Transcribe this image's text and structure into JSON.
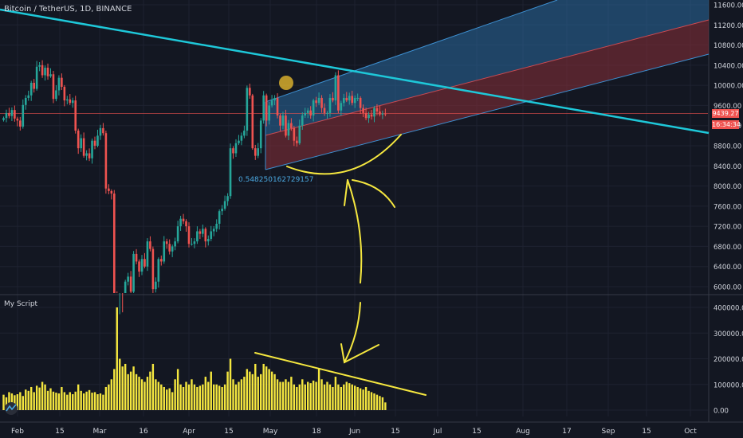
{
  "header": {
    "symbol_label": "Bitcoin / TetherUS, 1D, BINANCE"
  },
  "indicator": {
    "title": "My Script"
  },
  "price_axis": {
    "ticks": [
      "11600.00",
      "11200.00",
      "10800.00",
      "10400.00",
      "10000.00",
      "9600.00",
      "9200.00",
      "8800.00",
      "8400.00",
      "8000.00",
      "7600.00",
      "7200.00",
      "6800.00",
      "6400.00",
      "6000.00"
    ],
    "last_price": "9439.27",
    "countdown": "16:34:34"
  },
  "volume_axis": {
    "ticks": [
      "400000.00",
      "300000.00",
      "200000.00",
      "100000.00",
      "0.00"
    ]
  },
  "time_axis": {
    "ticks": [
      "Feb",
      "15",
      "Mar",
      "16",
      "Apr",
      "15",
      "May",
      "18",
      "Jun",
      "15",
      "Jul",
      "15",
      "Aug",
      "17",
      "Sep",
      "15",
      "Oct"
    ]
  },
  "annotation": {
    "channel_value": "0.548250162729157"
  },
  "colors": {
    "background": "#131722",
    "up": "#26a69a",
    "down": "#ef5350",
    "volume": "#f5e73f",
    "trendline": "#1ec8d9",
    "drawing": "#f5e73f",
    "channel_upper": "#2a6a9e",
    "channel_lower": "#8a2f38",
    "price_line": "#ef5350"
  },
  "chart_data": [
    {
      "type": "candlestick",
      "title": "Bitcoin / TetherUS, 1D, BINANCE",
      "ylim": [
        5800,
        11700
      ],
      "x_start": "2020-01-29",
      "y_ticks": [
        11600,
        11200,
        10800,
        10400,
        10000,
        9600,
        9200,
        8800,
        8400,
        8000,
        7600,
        7200,
        6800,
        6400,
        6000
      ],
      "x_ticks": [
        "Feb",
        "15",
        "Mar",
        "16",
        "Apr",
        "15",
        "May",
        "18",
        "Jun",
        "15",
        "Jul",
        "15",
        "Aug",
        "17",
        "Sep",
        "15",
        "Oct"
      ],
      "last_price": 9439.27,
      "close": [
        9350,
        9450,
        9390,
        9510,
        9340,
        9300,
        9180,
        9610,
        9750,
        9800,
        10050,
        9930,
        10370,
        10400,
        10200,
        10350,
        10180,
        10220,
        9730,
        9900,
        10150,
        9970,
        9700,
        9720,
        9650,
        9700,
        9100,
        8750,
        8950,
        8600,
        8650,
        8550,
        8900,
        8800,
        9000,
        9150,
        9050,
        7950,
        7900,
        7850,
        5800,
        5100,
        5400,
        5300,
        6100,
        6200,
        5900,
        6650,
        6500,
        6300,
        6550,
        6400,
        6900,
        6750,
        5950,
        6100,
        6550,
        6500,
        6900,
        6850,
        6700,
        6800,
        6900,
        7200,
        7350,
        7300,
        7200,
        6850,
        6850,
        6900,
        7100,
        7050,
        7150,
        6900,
        6950,
        7100,
        7150,
        7250,
        7500,
        7550,
        7700,
        7800,
        8750,
        8650,
        8850,
        8900,
        9000,
        9100,
        9950,
        9800,
        8750,
        8600,
        8750,
        9300,
        9800,
        9300,
        9600,
        9700,
        9750,
        9400,
        9200,
        9400,
        9000,
        9250,
        9150,
        8900,
        8850,
        9200,
        9400,
        9450,
        9500,
        9400,
        9700,
        9650,
        9750,
        9550,
        9450,
        9450,
        9750,
        9700,
        10200,
        9500,
        9650,
        9750,
        9700,
        9790,
        9650,
        9750,
        9750,
        9550,
        9450,
        9350,
        9420,
        9380,
        9550,
        9480,
        9420,
        9440,
        9439.27
      ],
      "volume": [
        60000,
        50000,
        70000,
        65000,
        58000,
        62000,
        70000,
        55000,
        80000,
        75000,
        90000,
        70000,
        95000,
        88000,
        110000,
        100000,
        75000,
        85000,
        72000,
        68000,
        65000,
        90000,
        70000,
        60000,
        70000,
        62000,
        72000,
        100000,
        75000,
        65000,
        72000,
        78000,
        68000,
        70000,
        62000,
        65000,
        60000,
        90000,
        100000,
        120000,
        160000,
        400000,
        200000,
        170000,
        180000,
        140000,
        150000,
        170000,
        140000,
        130000,
        120000,
        110000,
        130000,
        150000,
        180000,
        120000,
        110000,
        100000,
        90000,
        80000,
        85000,
        70000,
        120000,
        160000,
        100000,
        90000,
        110000,
        100000,
        120000,
        100000,
        90000,
        95000,
        100000,
        130000,
        110000,
        150000,
        100000,
        100000,
        95000,
        90000,
        100000,
        150000,
        200000,
        120000,
        100000,
        110000,
        120000,
        130000,
        160000,
        150000,
        140000,
        180000,
        130000,
        140000,
        180000,
        170000,
        160000,
        150000,
        140000,
        120000,
        110000,
        110000,
        120000,
        110000,
        130000,
        100000,
        90000,
        100000,
        120000,
        100000,
        110000,
        105000,
        115000,
        110000,
        160000,
        120000,
        100000,
        110000,
        100000,
        90000,
        130000,
        100000,
        90000,
        100000,
        110000,
        105000,
        100000,
        95000,
        90000,
        85000,
        80000,
        90000,
        75000,
        70000,
        65000,
        60000,
        55000,
        50000,
        30000
      ],
      "annotations": [
        "0.548250162729157"
      ]
    },
    {
      "type": "bar",
      "title": "My Script",
      "ylim": [
        0,
        420000
      ],
      "y_ticks": [
        400000,
        300000,
        200000,
        100000,
        0
      ]
    }
  ]
}
